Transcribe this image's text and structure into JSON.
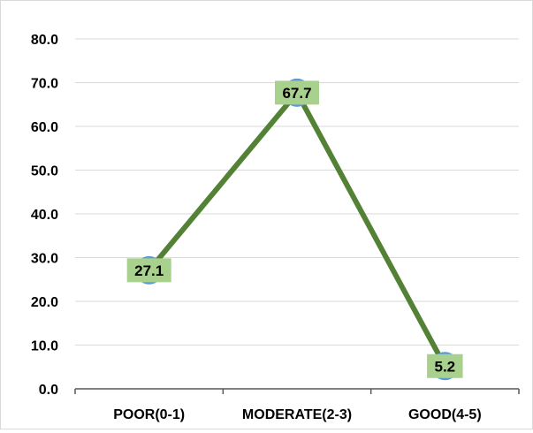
{
  "chart_data": {
    "type": "line",
    "categories": [
      "POOR(0-1)",
      "MODERATE(2-3)",
      "GOOD(4-5)"
    ],
    "series": [
      {
        "values": [
          27.1,
          67.7,
          5.2
        ]
      }
    ],
    "data_labels": [
      "27.1",
      "67.7",
      "5.2"
    ],
    "title": "",
    "xlabel": "",
    "ylabel": "",
    "ylim": [
      0,
      80
    ],
    "yticks": [
      "0.0",
      "10.0",
      "20.0",
      "30.0",
      "40.0",
      "50.0",
      "60.0",
      "70.0",
      "80.0"
    ],
    "grid": "horizontal",
    "legend": "none",
    "colors": {
      "line": "#538135",
      "marker": "#5b9bd5",
      "label_bg": "#a9d18e",
      "grid": "#d9d9d9",
      "axis": "#595959",
      "text": "#000000"
    }
  }
}
